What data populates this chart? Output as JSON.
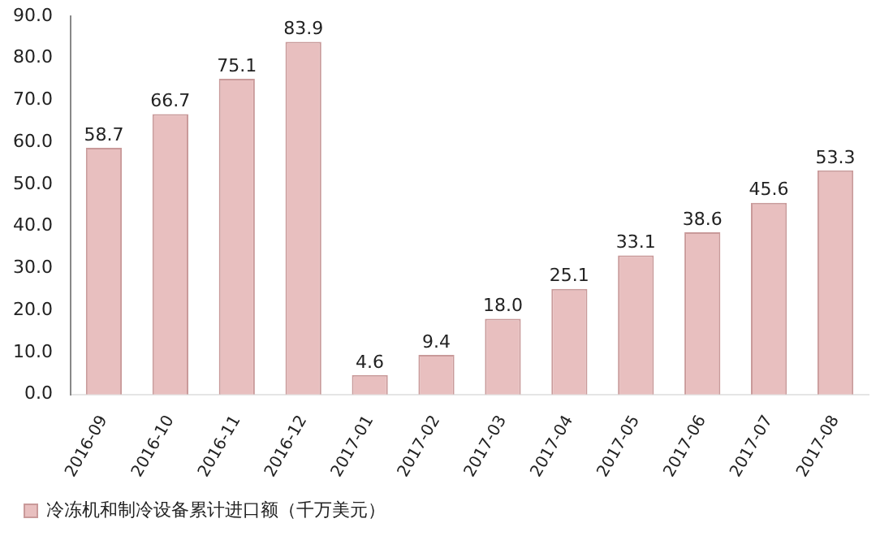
{
  "chart_data": {
    "type": "bar",
    "categories": [
      "2016-09",
      "2016-10",
      "2016-11",
      "2016-12",
      "2017-01",
      "2017-02",
      "2017-03",
      "2017-04",
      "2017-05",
      "2017-06",
      "2017-07",
      "2017-08"
    ],
    "series": [
      {
        "name": "冷冻机和制冷设备累计进口额（千万美元）",
        "color": "#e8bfbf",
        "values": [
          58.7,
          66.7,
          75.1,
          83.9,
          4.6,
          9.4,
          18.0,
          25.1,
          33.1,
          38.6,
          45.6,
          53.3
        ],
        "value_labels": [
          "58.7",
          "66.7",
          "75.1",
          "83.9",
          "4.6",
          "9.4",
          "18.0",
          "25.1",
          "33.1",
          "38.6",
          "45.6",
          "53.3"
        ]
      }
    ],
    "ylim": [
      0,
      90
    ],
    "yticks": [
      {
        "value": 0,
        "label": "0.0"
      },
      {
        "value": 10,
        "label": "10.0"
      },
      {
        "value": 20,
        "label": "20.0"
      },
      {
        "value": 30,
        "label": "30.0"
      },
      {
        "value": 40,
        "label": "40.0"
      },
      {
        "value": 50,
        "label": "50.0"
      },
      {
        "value": 60,
        "label": "60.0"
      },
      {
        "value": 70,
        "label": "70.0"
      },
      {
        "value": 80,
        "label": "80.0"
      },
      {
        "value": 90,
        "label": "90.0"
      }
    ],
    "legend": "bottom left"
  }
}
